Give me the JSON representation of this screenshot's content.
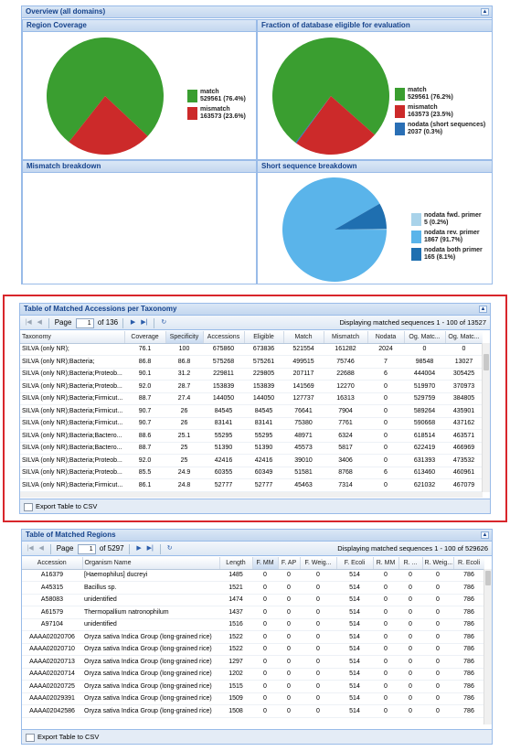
{
  "overview": {
    "title": "Overview (all domains)"
  },
  "region_coverage": {
    "title": "Region Coverage",
    "chart_data": {
      "type": "pie",
      "title": "Region Coverage",
      "slices": [
        {
          "label": "match",
          "value": 529561,
          "percent": 76.4,
          "color": "#3a9e30"
        },
        {
          "label": "mismatch",
          "value": 163573,
          "percent": 23.6,
          "color": "#cc2a2a"
        }
      ]
    },
    "legend": [
      {
        "label": "match",
        "detail": "529561 (76.4%)",
        "color": "#3a9e30"
      },
      {
        "label": "mismatch",
        "detail": "163573 (23.6%)",
        "color": "#cc2a2a"
      }
    ]
  },
  "fraction": {
    "title": "Fraction of database eligible for evaluation",
    "chart_data": {
      "type": "pie",
      "title": "Fraction of database eligible for evaluation",
      "slices": [
        {
          "label": "match",
          "value": 529561,
          "percent": 76.2,
          "color": "#3a9e30"
        },
        {
          "label": "mismatch",
          "value": 163573,
          "percent": 23.5,
          "color": "#cc2a2a"
        },
        {
          "label": "nodata (short sequences)",
          "value": 2037,
          "percent": 0.3,
          "color": "#2a6fb5"
        }
      ]
    },
    "legend": [
      {
        "label": "match",
        "detail": "529561 (76.2%)",
        "color": "#3a9e30"
      },
      {
        "label": "mismatch",
        "detail": "163573 (23.5%)",
        "color": "#cc2a2a"
      },
      {
        "label": "nodata (short sequences)",
        "detail": "2037 (0.3%)",
        "color": "#2a6fb5"
      }
    ]
  },
  "mismatch_breakdown": {
    "title": "Mismatch breakdown"
  },
  "short_sequence": {
    "title": "Short sequence breakdown",
    "chart_data": {
      "type": "pie",
      "title": "Short sequence breakdown",
      "slices": [
        {
          "label": "nodata fwd. primer",
          "value": 5,
          "percent": 0.2,
          "color": "#a9d3ea"
        },
        {
          "label": "nodata rev. primer",
          "value": 1867,
          "percent": 91.7,
          "color": "#5ab4ea"
        },
        {
          "label": "nodata both primer",
          "value": 165,
          "percent": 8.1,
          "color": "#1f6fb0"
        }
      ]
    },
    "legend": [
      {
        "label": "nodata fwd. primer",
        "detail": "5 (0.2%)",
        "color": "#a9d3ea"
      },
      {
        "label": "nodata rev. primer",
        "detail": "1867 (91.7%)",
        "color": "#5ab4ea"
      },
      {
        "label": "nodata both primer",
        "detail": "165 (8.1%)",
        "color": "#1f6fb0"
      }
    ]
  },
  "taxonomy_table": {
    "title": "Table of Matched Accessions per Taxonomy",
    "page_label": "Page",
    "page": "1",
    "of_pages": "of 136",
    "display": "Displaying matched sequences 1 - 100 of 13527",
    "columns": [
      "Taxonomy",
      "Coverage",
      "Specificity",
      "Accessions",
      "Eligible",
      "Match",
      "Mismatch",
      "Nodata",
      "Og. Matc...",
      "Og. Matc..."
    ],
    "rows": [
      [
        "SILVA (only NR);",
        "76.1",
        "100",
        "675860",
        "673836",
        "521554",
        "161282",
        "2024",
        "0",
        "0"
      ],
      [
        "SILVA (only NR);Bacteria;",
        "86.8",
        "86.8",
        "575268",
        "575261",
        "499515",
        "75746",
        "7",
        "98548",
        "13027"
      ],
      [
        "SILVA (only NR);Bacteria;Proteob...",
        "90.1",
        "31.2",
        "229811",
        "229805",
        "207117",
        "22688",
        "6",
        "444004",
        "305425"
      ],
      [
        "SILVA (only NR);Bacteria;Proteob...",
        "92.0",
        "28.7",
        "153839",
        "153839",
        "141569",
        "12270",
        "0",
        "519970",
        "370973"
      ],
      [
        "SILVA (only NR);Bacteria;Firmicut...",
        "88.7",
        "27.4",
        "144050",
        "144050",
        "127737",
        "16313",
        "0",
        "529759",
        "384805"
      ],
      [
        "SILVA (only NR);Bacteria;Firmicut...",
        "90.7",
        "26",
        "84545",
        "84545",
        "76641",
        "7904",
        "0",
        "589264",
        "435901"
      ],
      [
        "SILVA (only NR);Bacteria;Firmicut...",
        "90.7",
        "26",
        "83141",
        "83141",
        "75380",
        "7761",
        "0",
        "590668",
        "437162"
      ],
      [
        "SILVA (only NR);Bacteria;Bactero...",
        "88.6",
        "25.1",
        "55295",
        "55295",
        "48971",
        "6324",
        "0",
        "618514",
        "463571"
      ],
      [
        "SILVA (only NR);Bacteria;Bactero...",
        "88.7",
        "25",
        "51390",
        "51390",
        "45573",
        "5817",
        "0",
        "622419",
        "466969"
      ],
      [
        "SILVA (only NR);Bacteria;Proteob...",
        "92.0",
        "25",
        "42416",
        "42416",
        "39010",
        "3406",
        "0",
        "631393",
        "473532"
      ],
      [
        "SILVA (only NR);Bacteria;Proteob...",
        "85.5",
        "24.9",
        "60355",
        "60349",
        "51581",
        "8768",
        "6",
        "613460",
        "460961"
      ],
      [
        "SILVA (only NR);Bacteria;Firmicut...",
        "86.1",
        "24.8",
        "52777",
        "52777",
        "45463",
        "7314",
        "0",
        "621032",
        "467079"
      ]
    ],
    "export_label": "Export Table to CSV"
  },
  "regions_table": {
    "title": "Table of Matched Regions",
    "page_label": "Page",
    "page": "1",
    "of_pages": "of 5297",
    "display": "Displaying matched sequences 1 - 100 of 529626",
    "columns": [
      "Accession",
      "Organism Name",
      "Length",
      "F. MM",
      "F. AP",
      "F. Weig...",
      "F. Ecoli",
      "R. MM",
      "R. ...",
      "R. Weig...",
      "R. Ecoli"
    ],
    "rows": [
      [
        "A16379",
        "[Haemophilus] ducreyi",
        "1485",
        "0",
        "0",
        "0",
        "514",
        "0",
        "0",
        "0",
        "786"
      ],
      [
        "A45315",
        "Bacillus sp.",
        "1521",
        "0",
        "0",
        "0",
        "514",
        "0",
        "0",
        "0",
        "786"
      ],
      [
        "A58083",
        "unidentified",
        "1474",
        "0",
        "0",
        "0",
        "514",
        "0",
        "0",
        "0",
        "786"
      ],
      [
        "A61579",
        "Thermopallium natronophilum",
        "1437",
        "0",
        "0",
        "0",
        "514",
        "0",
        "0",
        "0",
        "786"
      ],
      [
        "A97104",
        "unidentified",
        "1516",
        "0",
        "0",
        "0",
        "514",
        "0",
        "0",
        "0",
        "786"
      ],
      [
        "AAAA02020706",
        "Oryza sativa Indica Group (long-grained rice)",
        "1522",
        "0",
        "0",
        "0",
        "514",
        "0",
        "0",
        "0",
        "786"
      ],
      [
        "AAAA02020710",
        "Oryza sativa Indica Group (long-grained rice)",
        "1522",
        "0",
        "0",
        "0",
        "514",
        "0",
        "0",
        "0",
        "786"
      ],
      [
        "AAAA02020713",
        "Oryza sativa Indica Group (long-grained rice)",
        "1297",
        "0",
        "0",
        "0",
        "514",
        "0",
        "0",
        "0",
        "786"
      ],
      [
        "AAAA02020714",
        "Oryza sativa Indica Group (long-grained rice)",
        "1202",
        "0",
        "0",
        "0",
        "514",
        "0",
        "0",
        "0",
        "786"
      ],
      [
        "AAAA02020725",
        "Oryza sativa Indica Group (long-grained rice)",
        "1515",
        "0",
        "0",
        "0",
        "514",
        "0",
        "0",
        "0",
        "786"
      ],
      [
        "AAAA02029391",
        "Oryza sativa Indica Group (long-grained rice)",
        "1509",
        "0",
        "0",
        "0",
        "514",
        "0",
        "0",
        "0",
        "786"
      ],
      [
        "AAAA02042586",
        "Oryza sativa Indica Group (long-grained rice)",
        "1508",
        "0",
        "0",
        "0",
        "514",
        "0",
        "0",
        "0",
        "786"
      ]
    ],
    "export_label": "Export Table to CSV"
  }
}
